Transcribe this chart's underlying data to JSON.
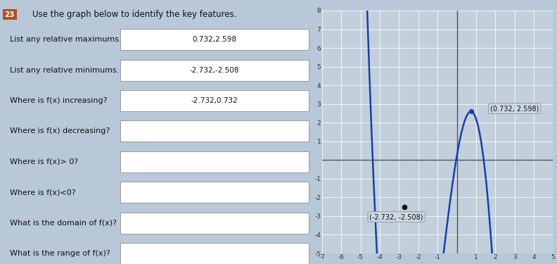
{
  "title": "Use the graph below to identify the key features.",
  "question_number": "23",
  "rel_max": [
    0.732,
    2.598
  ],
  "rel_min": [
    -2.732,
    -2.508
  ],
  "rel_max_label": "(0.732, 2.598)",
  "rel_min_label": "(-2.732, -2.508)",
  "xlim": [
    -7,
    5
  ],
  "ylim": [
    -5,
    8
  ],
  "xticks": [
    -7,
    -6,
    -5,
    -4,
    -3,
    -2,
    -1,
    0,
    1,
    2,
    3,
    4,
    5
  ],
  "yticks": [
    -5,
    -4,
    -3,
    -2,
    -1,
    0,
    1,
    2,
    3,
    4,
    5,
    6,
    7,
    8
  ],
  "curve_color": "#1a3cb5",
  "bg_color": "#c2d0dc",
  "grid_color": "#ffffff",
  "left_panel_bg": "#b8c8d8",
  "answers": {
    "rel_max": "0.732,2.598",
    "rel_min": "-2.732,-2.508",
    "increasing": "-2.732,0.732",
    "decreasing": "",
    "fx_pos": "",
    "fx_neg": "",
    "domain": "",
    "range": ""
  },
  "questions": [
    "List any relative maximums.",
    "List any relative minimums.",
    "Where is f(x) increasing?",
    "Where is f(x) decreasing?",
    "Where is f(x)> 0?",
    "Where is f(x)<0?",
    "What is the domain of f(x)?",
    "What is the range of f(x)?"
  ],
  "has_answer": [
    true,
    true,
    true,
    false,
    false,
    false,
    false,
    false
  ],
  "curve_C": 0.206,
  "figsize": [
    7.92,
    3.75
  ],
  "dpi": 100
}
